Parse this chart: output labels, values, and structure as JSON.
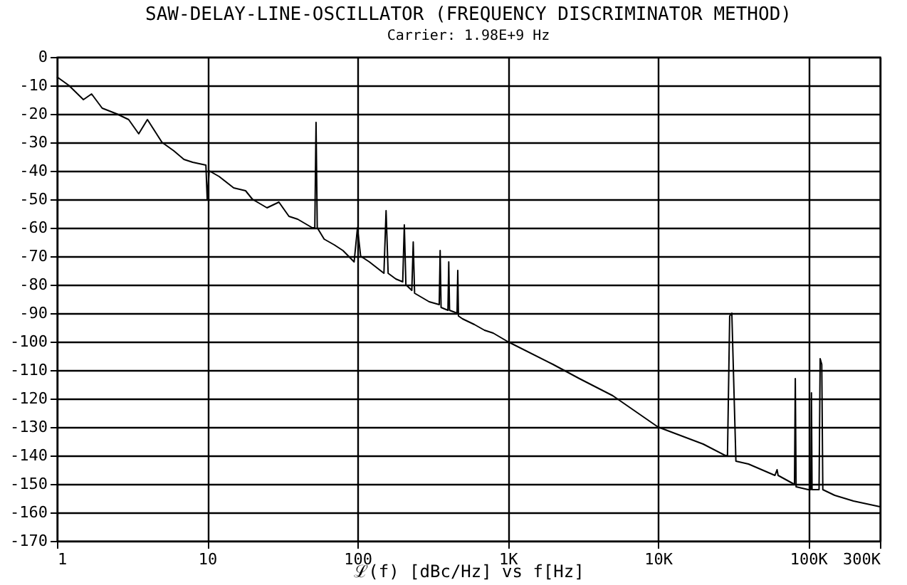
{
  "chart_data": {
    "type": "line",
    "title": "SAW-DELAY-LINE-OSCILLATOR (FREQUENCY DISCRIMINATOR METHOD)",
    "subtitle": "Carrier: 1.98E+9 Hz",
    "xlabel": "ℒ(f) [dBc/Hz] vs f[Hz]",
    "log": "x",
    "grid": true,
    "line_style": "solid",
    "xlim": [
      1,
      300000
    ],
    "ylim": [
      -170,
      0
    ],
    "xticks": [
      1,
      10,
      100,
      {
        "value": 1000,
        "label": "1K"
      },
      {
        "value": 10000,
        "label": "10K"
      },
      {
        "value": 100000,
        "label": "100K"
      },
      {
        "value": 300000,
        "label": "300K"
      }
    ],
    "yticks": [
      0,
      -10,
      -20,
      -30,
      -40,
      -50,
      -60,
      -70,
      -80,
      -90,
      -100,
      -110,
      -120,
      -130,
      -140,
      -150,
      -160,
      -170
    ],
    "x": [
      1,
      1.2,
      1.5,
      1.7,
      2,
      2.5,
      3,
      3.5,
      4,
      5,
      6,
      7,
      8,
      9.8,
      10,
      10.3,
      12,
      15,
      18,
      20,
      25,
      30,
      35,
      40,
      50,
      52,
      53,
      54,
      60,
      70,
      80,
      95,
      100,
      105,
      120,
      150,
      155,
      160,
      180,
      200,
      205,
      210,
      230,
      235,
      240,
      300,
      350,
      355,
      360,
      400,
      405,
      410,
      460,
      465,
      470,
      500,
      600,
      700,
      800,
      1000,
      2000,
      3000,
      5000,
      10000,
      20000,
      28000,
      29000,
      30000,
      31000,
      33000,
      40000,
      60000,
      62000,
      63000,
      80000,
      81000,
      82000,
      83000,
      100000,
      104000,
      105000,
      106000,
      118000,
      120000,
      123000,
      125000,
      150000,
      200000,
      300000
    ],
    "series": [
      {
        "color": "#000000",
        "values": [
          -7,
          -10,
          -15,
          -13,
          -18,
          -20,
          -22,
          -27,
          -22,
          -30,
          -33,
          -36,
          -37,
          -38,
          -50,
          -40,
          -42,
          -46,
          -47,
          -50,
          -53,
          -51,
          -56,
          -57,
          -60,
          -60,
          -23,
          -60,
          -64,
          -66,
          -68,
          -72,
          -60,
          -70,
          -72,
          -76,
          -54,
          -76,
          -78,
          -79,
          -59,
          -80,
          -82,
          -65,
          -83,
          -86,
          -87,
          -68,
          -88,
          -89,
          -72,
          -89,
          -90,
          -75,
          -91,
          -92,
          -94,
          -96,
          -97,
          -100,
          -108,
          -113,
          -119,
          -130,
          -136,
          -140,
          -140,
          -91,
          -90,
          -142,
          -143,
          -147,
          -145,
          -147,
          -150,
          -150,
          -113,
          -151,
          -152,
          -152,
          -118,
          -152,
          -152,
          -106,
          -108,
          -152,
          -154,
          -156,
          -158
        ]
      }
    ]
  }
}
